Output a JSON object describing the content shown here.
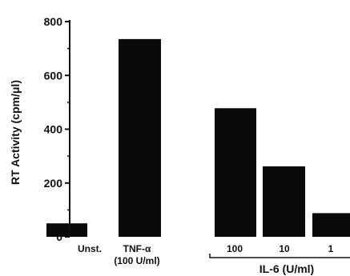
{
  "chart_data": {
    "type": "bar",
    "ylabel": "RT Activity (cpm/μl)",
    "ylim": [
      0,
      800
    ],
    "yticks": [
      0,
      200,
      400,
      600,
      800
    ],
    "categories": [
      "Unst.",
      "TNF-α",
      "100",
      "10",
      "1"
    ],
    "category_sublabels": [
      "",
      "(100 U/ml)",
      "",
      "",
      ""
    ],
    "values": [
      50,
      735,
      478,
      262,
      88
    ],
    "groups": [
      {
        "label": "IL-6 (U/ml)",
        "categories": [
          "100",
          "10",
          "1"
        ]
      }
    ],
    "bar_color": "#0a0a0a",
    "grid": false,
    "legend": "none"
  }
}
